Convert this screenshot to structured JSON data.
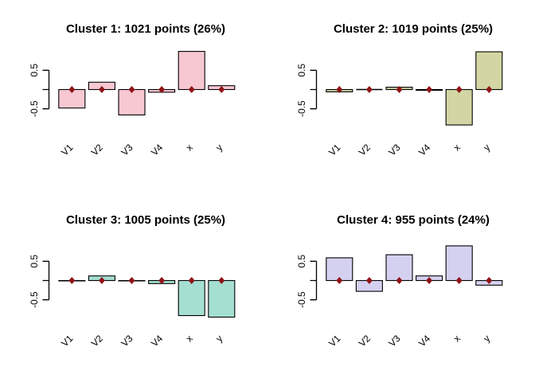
{
  "chart_data": {
    "type": "bar",
    "layout": "2x2-grid",
    "grid": false,
    "background": "#FFFFFF",
    "categories": [
      "V1",
      "V2",
      "V3",
      "V4",
      "x",
      "y"
    ],
    "yticks": [
      0.5,
      0,
      -0.5
    ],
    "ytick_labels": [
      "0.5",
      "",
      "-0.5"
    ],
    "ylim": [
      -1.05,
      1.1
    ],
    "bar_border_color": "#000000",
    "marker": {
      "shape": "diamond",
      "value": 0,
      "color": "#8E1418"
    },
    "panels": [
      {
        "title": "Cluster 1: 1021 points (26%)",
        "bar_color": "#F8C8D2",
        "values": [
          -0.48,
          0.19,
          -0.66,
          -0.07,
          0.99,
          0.1
        ]
      },
      {
        "title": "Cluster 2: 1019 points (25%)",
        "bar_color": "#D3D6A4",
        "values": [
          -0.06,
          0.0,
          0.06,
          -0.02,
          -0.92,
          0.98
        ]
      },
      {
        "title": "Cluster 3: 1005 points (25%)",
        "bar_color": "#A5DFD2",
        "values": [
          -0.01,
          0.12,
          -0.01,
          -0.08,
          -0.91,
          -0.95
        ]
      },
      {
        "title": "Cluster 4: 955 points (24%)",
        "bar_color": "#D4D1F0",
        "values": [
          0.59,
          -0.28,
          0.67,
          0.12,
          0.9,
          -0.12
        ]
      }
    ]
  }
}
